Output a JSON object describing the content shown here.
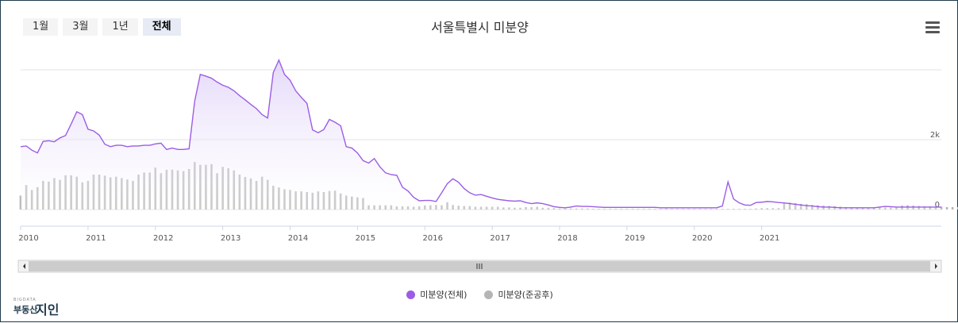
{
  "range_buttons": [
    {
      "label": "1월",
      "active": false
    },
    {
      "label": "3월",
      "active": false
    },
    {
      "label": "1년",
      "active": false
    },
    {
      "label": "전체",
      "active": true
    }
  ],
  "colors": {
    "total": "#9b5de5",
    "total_fill_top": "#d9c9f7",
    "after": "#b5b5b5",
    "grid": "#e3e3e3"
  },
  "chart_data": {
    "type": "area",
    "title": "서울특별시 미분양",
    "x_start": "2010-01",
    "x_step": "month",
    "xticks": [
      "2010",
      "2011",
      "2012",
      "2013",
      "2014",
      "2015",
      "2016",
      "2017",
      "2018",
      "2019",
      "2020",
      "2021"
    ],
    "yticks": [
      {
        "label": "0",
        "value": 0
      },
      {
        "label": "2k",
        "value": 2000
      }
    ],
    "ylim": [
      0,
      4000
    ],
    "legend_position": "bottom",
    "series": [
      {
        "name": "미분양(전체)",
        "type": "area",
        "values": [
          1800,
          1820,
          1700,
          1620,
          1950,
          1970,
          1940,
          2050,
          2120,
          2450,
          2800,
          2720,
          2300,
          2250,
          2130,
          1870,
          1800,
          1840,
          1840,
          1800,
          1820,
          1820,
          1840,
          1840,
          1880,
          1900,
          1720,
          1760,
          1720,
          1720,
          1740,
          3100,
          3870,
          3820,
          3760,
          3650,
          3560,
          3500,
          3400,
          3260,
          3140,
          3010,
          2890,
          2720,
          2620,
          3920,
          4280,
          3870,
          3700,
          3400,
          3210,
          3040,
          2280,
          2200,
          2290,
          2580,
          2500,
          2400,
          1800,
          1760,
          1620,
          1400,
          1330,
          1460,
          1220,
          1050,
          1000,
          980,
          640,
          530,
          350,
          250,
          260,
          260,
          230,
          480,
          740,
          880,
          780,
          600,
          480,
          410,
          430,
          380,
          330,
          290,
          270,
          250,
          240,
          250,
          200,
          170,
          190,
          170,
          130,
          80,
          60,
          50,
          70,
          100,
          90,
          90,
          80,
          70,
          60,
          60,
          60,
          60,
          60,
          60,
          60,
          60,
          60,
          60,
          50,
          50,
          50,
          50,
          50,
          50,
          50,
          50,
          50,
          50,
          50,
          100,
          790,
          300,
          190,
          130,
          120,
          200,
          210,
          230,
          220,
          200,
          190,
          170,
          150,
          130,
          110,
          100,
          80,
          70,
          70,
          60,
          50,
          50,
          50,
          50,
          50,
          50,
          50,
          70,
          90,
          80,
          70,
          70,
          70,
          70,
          70,
          70,
          70,
          70,
          70
        ]
      },
      {
        "name": "미분양(준공후)",
        "type": "bar",
        "values": [
          400,
          700,
          560,
          640,
          820,
          800,
          900,
          850,
          980,
          980,
          940,
          780,
          820,
          1000,
          1000,
          970,
          920,
          940,
          900,
          860,
          820,
          1000,
          1060,
          1060,
          1200,
          1040,
          1140,
          1140,
          1120,
          1100,
          1160,
          1360,
          1280,
          1280,
          1300,
          1040,
          1220,
          1180,
          1120,
          1000,
          930,
          890,
          820,
          940,
          850,
          680,
          630,
          580,
          560,
          520,
          520,
          500,
          480,
          520,
          500,
          530,
          540,
          460,
          400,
          370,
          350,
          330,
          120,
          120,
          120,
          120,
          120,
          90,
          90,
          90,
          80,
          90,
          120,
          120,
          130,
          120,
          210,
          130,
          110,
          100,
          100,
          80,
          80,
          80,
          80,
          80,
          60,
          60,
          50,
          50,
          70,
          70,
          80,
          50,
          50,
          40,
          30,
          30,
          30,
          30,
          30,
          30,
          20,
          20,
          20,
          20,
          20,
          20,
          20,
          20,
          20,
          20,
          20,
          20,
          20,
          30,
          20,
          20,
          20,
          20,
          20,
          20,
          20,
          20,
          20,
          20,
          20,
          20,
          20,
          20,
          20,
          30,
          40,
          40,
          40,
          40,
          190,
          200,
          180,
          160,
          150,
          130,
          120,
          110,
          100,
          90,
          80,
          70,
          70,
          60,
          60,
          60,
          60,
          60,
          60,
          60,
          60,
          110,
          120,
          110,
          100,
          90,
          90,
          80,
          80,
          70,
          70,
          70,
          70
        ]
      }
    ]
  }
}
